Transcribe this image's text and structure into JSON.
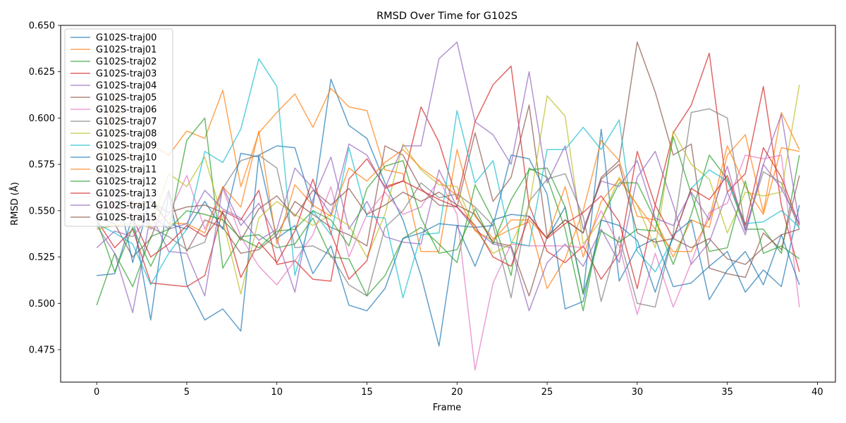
{
  "chart_data": {
    "type": "line",
    "title": "RMSD Over Time for G102S",
    "xlabel": "Frame",
    "ylabel": "RMSD (Å)",
    "xlim": [
      -2.0,
      41.0
    ],
    "ylim": [
      0.4575,
      0.65
    ],
    "xticks": [
      0,
      5,
      10,
      15,
      20,
      25,
      30,
      35,
      40
    ],
    "yticks": [
      0.475,
      0.5,
      0.525,
      0.55,
      0.575,
      0.6,
      0.625,
      0.65
    ],
    "ytick_labels": [
      "0.475",
      "0.500",
      "0.525",
      "0.550",
      "0.575",
      "0.600",
      "0.625",
      "0.650"
    ],
    "grid": false,
    "legend_position": "upper-left",
    "x": [
      0,
      1,
      2,
      3,
      4,
      5,
      6,
      7,
      8,
      9,
      10,
      11,
      12,
      13,
      14,
      15,
      16,
      17,
      18,
      19,
      20,
      21,
      22,
      23,
      24,
      25,
      26,
      27,
      28,
      29,
      30,
      31,
      32,
      33,
      34,
      35,
      36,
      37,
      38,
      39
    ],
    "series": [
      {
        "name": "G102S-traj00",
        "color": "#1f77b4",
        "values": [
          0.515,
          0.516,
          0.547,
          0.491,
          0.56,
          0.51,
          0.491,
          0.497,
          0.485,
          0.58,
          0.585,
          0.584,
          0.552,
          0.621,
          0.596,
          0.589,
          0.565,
          0.545,
          0.515,
          0.477,
          0.542,
          0.52,
          0.545,
          0.548,
          0.547,
          0.535,
          0.552,
          0.505,
          0.594,
          0.512,
          0.53,
          0.535,
          0.509,
          0.511,
          0.52,
          0.528,
          0.506,
          0.518,
          0.509,
          0.553
        ]
      },
      {
        "name": "G102S-traj01",
        "color": "#ff7f0e",
        "values": [
          0.565,
          0.612,
          0.57,
          0.586,
          0.58,
          0.593,
          0.589,
          0.615,
          0.563,
          0.592,
          0.603,
          0.613,
          0.595,
          0.616,
          0.606,
          0.604,
          0.572,
          0.57,
          0.528,
          0.528,
          0.583,
          0.547,
          0.535,
          0.54,
          0.544,
          0.508,
          0.524,
          0.55,
          0.588,
          0.577,
          0.547,
          0.545,
          0.525,
          0.545,
          0.541,
          0.58,
          0.591,
          0.549,
          0.603,
          0.583
        ]
      },
      {
        "name": "G102S-traj02",
        "color": "#2ca02c",
        "values": [
          0.499,
          0.527,
          0.509,
          0.536,
          0.54,
          0.588,
          0.6,
          0.519,
          0.536,
          0.537,
          0.53,
          0.532,
          0.546,
          0.525,
          0.524,
          0.504,
          0.515,
          0.535,
          0.541,
          0.532,
          0.522,
          0.564,
          0.545,
          0.515,
          0.573,
          0.568,
          0.54,
          0.496,
          0.545,
          0.565,
          0.565,
          0.545,
          0.521,
          0.548,
          0.58,
          0.567,
          0.54,
          0.54,
          0.527,
          0.58
        ]
      },
      {
        "name": "G102S-traj03",
        "color": "#d62728",
        "values": [
          0.545,
          0.53,
          0.54,
          0.511,
          0.51,
          0.509,
          0.515,
          0.55,
          0.545,
          0.561,
          0.521,
          0.523,
          0.513,
          0.512,
          0.567,
          0.578,
          0.563,
          0.566,
          0.606,
          0.587,
          0.556,
          0.598,
          0.618,
          0.628,
          0.553,
          0.528,
          0.522,
          0.531,
          0.513,
          0.527,
          0.582,
          0.553,
          0.592,
          0.607,
          0.635,
          0.56,
          0.57,
          0.617,
          0.553,
          0.517
        ]
      },
      {
        "name": "G102S-traj04",
        "color": "#9467bd",
        "values": [
          0.542,
          0.527,
          0.495,
          0.548,
          0.528,
          0.527,
          0.504,
          0.563,
          0.542,
          0.554,
          0.535,
          0.506,
          0.556,
          0.579,
          0.54,
          0.555,
          0.536,
          0.533,
          0.532,
          0.572,
          0.552,
          0.54,
          0.532,
          0.53,
          0.496,
          0.522,
          0.532,
          0.52,
          0.54,
          0.522,
          0.568,
          0.582,
          0.553,
          0.521,
          0.533,
          0.56,
          0.537,
          0.575,
          0.602,
          0.543
        ]
      },
      {
        "name": "G102S-traj05",
        "color": "#8c564b",
        "values": [
          0.546,
          0.543,
          0.525,
          0.535,
          0.561,
          0.528,
          0.545,
          0.541,
          0.527,
          0.529,
          0.537,
          0.555,
          0.548,
          0.541,
          0.537,
          0.531,
          0.585,
          0.58,
          0.562,
          0.553,
          0.552,
          0.592,
          0.555,
          0.568,
          0.607,
          0.536,
          0.545,
          0.538,
          0.568,
          0.577,
          0.641,
          0.614,
          0.58,
          0.586,
          0.519,
          0.516,
          0.514,
          0.538,
          0.529,
          0.569
        ]
      },
      {
        "name": "G102S-traj06",
        "color": "#e377c2",
        "values": [
          0.57,
          0.551,
          0.551,
          0.54,
          0.548,
          0.569,
          0.54,
          0.562,
          0.536,
          0.52,
          0.51,
          0.523,
          0.537,
          0.563,
          0.525,
          0.548,
          0.56,
          0.548,
          0.552,
          0.567,
          0.548,
          0.464,
          0.511,
          0.532,
          0.531,
          0.531,
          0.531,
          0.53,
          0.55,
          0.531,
          0.494,
          0.527,
          0.498,
          0.522,
          0.549,
          0.554,
          0.58,
          0.578,
          0.58,
          0.498
        ]
      },
      {
        "name": "G102S-traj07",
        "color": "#7f7f7f",
        "values": [
          0.545,
          0.554,
          0.555,
          0.541,
          0.536,
          0.529,
          0.533,
          0.562,
          0.577,
          0.58,
          0.573,
          0.53,
          0.531,
          0.526,
          0.51,
          0.504,
          0.541,
          0.55,
          0.565,
          0.557,
          0.559,
          0.552,
          0.542,
          0.503,
          0.555,
          0.567,
          0.57,
          0.547,
          0.501,
          0.536,
          0.5,
          0.498,
          0.538,
          0.603,
          0.605,
          0.6,
          0.54,
          0.571,
          0.565,
          0.54
        ]
      },
      {
        "name": "G102S-traj08",
        "color": "#bcbd22",
        "values": [
          0.54,
          0.542,
          0.543,
          0.541,
          0.57,
          0.563,
          0.579,
          0.545,
          0.505,
          0.546,
          0.555,
          0.548,
          0.542,
          0.548,
          0.542,
          0.525,
          0.548,
          0.586,
          0.572,
          0.564,
          0.563,
          0.54,
          0.527,
          0.532,
          0.552,
          0.612,
          0.601,
          0.532,
          0.545,
          0.568,
          0.553,
          0.53,
          0.593,
          0.575,
          0.567,
          0.538,
          0.56,
          0.558,
          0.56,
          0.618
        ]
      },
      {
        "name": "G102S-traj09",
        "color": "#17becf",
        "values": [
          0.543,
          0.538,
          0.532,
          0.51,
          0.527,
          0.54,
          0.582,
          0.576,
          0.594,
          0.632,
          0.617,
          0.515,
          0.55,
          0.537,
          0.584,
          0.547,
          0.546,
          0.503,
          0.537,
          0.538,
          0.604,
          0.565,
          0.577,
          0.533,
          0.531,
          0.583,
          0.583,
          0.595,
          0.583,
          0.599,
          0.528,
          0.517,
          0.535,
          0.562,
          0.572,
          0.566,
          0.543,
          0.544,
          0.55,
          0.541
        ]
      },
      {
        "name": "G102S-traj10",
        "color": "#1f77b4",
        "values": [
          0.574,
          0.568,
          0.522,
          0.557,
          0.543,
          0.54,
          0.555,
          0.54,
          0.581,
          0.579,
          0.535,
          0.542,
          0.516,
          0.531,
          0.499,
          0.496,
          0.508,
          0.535,
          0.538,
          0.543,
          0.542,
          0.541,
          0.542,
          0.58,
          0.578,
          0.559,
          0.497,
          0.501,
          0.545,
          0.542,
          0.534,
          0.506,
          0.537,
          0.545,
          0.502,
          0.518,
          0.528,
          0.51,
          0.537,
          0.51
        ]
      },
      {
        "name": "G102S-traj11",
        "color": "#ff7f0e",
        "values": [
          0.573,
          0.569,
          0.553,
          0.555,
          0.543,
          0.543,
          0.538,
          0.563,
          0.552,
          0.593,
          0.532,
          0.564,
          0.553,
          0.547,
          0.573,
          0.566,
          0.576,
          0.583,
          0.573,
          0.566,
          0.558,
          0.539,
          0.534,
          0.545,
          0.545,
          0.535,
          0.563,
          0.525,
          0.555,
          0.567,
          0.553,
          0.54,
          0.528,
          0.528,
          0.546,
          0.585,
          0.563,
          0.548,
          0.584,
          0.582
        ]
      },
      {
        "name": "G102S-traj12",
        "color": "#2ca02c",
        "values": [
          0.545,
          0.517,
          0.541,
          0.52,
          0.54,
          0.55,
          0.548,
          0.545,
          0.535,
          0.53,
          0.539,
          0.54,
          0.55,
          0.545,
          0.531,
          0.562,
          0.574,
          0.577,
          0.546,
          0.527,
          0.529,
          0.551,
          0.532,
          0.556,
          0.572,
          0.573,
          0.552,
          0.505,
          0.539,
          0.533,
          0.54,
          0.539,
          0.59,
          0.559,
          0.528,
          0.53,
          0.566,
          0.527,
          0.531,
          0.524
        ]
      },
      {
        "name": "G102S-traj13",
        "color": "#d62728",
        "values": [
          0.55,
          0.553,
          0.546,
          0.525,
          0.532,
          0.542,
          0.536,
          0.549,
          0.514,
          0.533,
          0.522,
          0.539,
          0.567,
          0.538,
          0.513,
          0.523,
          0.562,
          0.566,
          0.561,
          0.556,
          0.552,
          0.542,
          0.525,
          0.52,
          0.547,
          0.535,
          0.543,
          0.549,
          0.558,
          0.544,
          0.508,
          0.553,
          0.535,
          0.562,
          0.556,
          0.569,
          0.542,
          0.584,
          0.568,
          0.542
        ]
      },
      {
        "name": "G102S-traj14",
        "color": "#9467bd",
        "values": [
          0.53,
          0.539,
          0.536,
          0.548,
          0.54,
          0.543,
          0.561,
          0.551,
          0.546,
          0.534,
          0.54,
          0.573,
          0.562,
          0.548,
          0.586,
          0.58,
          0.562,
          0.585,
          0.585,
          0.632,
          0.641,
          0.598,
          0.591,
          0.575,
          0.625,
          0.565,
          0.585,
          0.54,
          0.566,
          0.563,
          0.577,
          0.546,
          0.542,
          0.56,
          0.545,
          0.574,
          0.539,
          0.575,
          0.562,
          0.543
        ]
      },
      {
        "name": "G102S-traj15",
        "color": "#8c564b",
        "values": [
          0.548,
          0.56,
          0.552,
          0.555,
          0.549,
          0.552,
          0.553,
          0.549,
          0.534,
          0.551,
          0.558,
          0.547,
          0.561,
          0.553,
          0.562,
          0.548,
          0.553,
          0.56,
          0.555,
          0.56,
          0.553,
          0.548,
          0.533,
          0.531,
          0.504,
          0.536,
          0.545,
          0.538,
          0.567,
          0.575,
          0.538,
          0.533,
          0.535,
          0.53,
          0.535,
          0.524,
          0.521,
          0.53,
          0.537,
          0.54
        ]
      }
    ]
  }
}
